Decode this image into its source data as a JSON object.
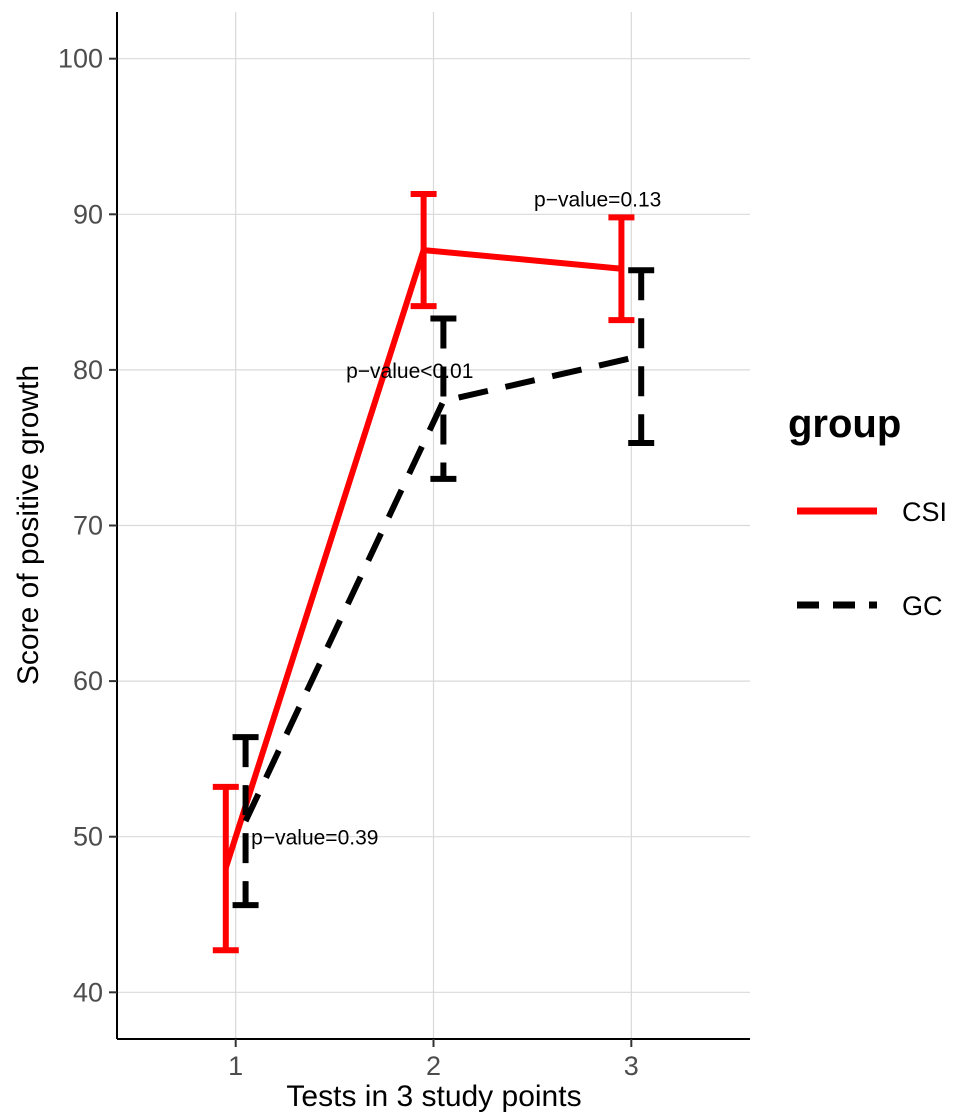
{
  "chart_data": {
    "type": "line",
    "xlabel": "Tests in 3 study points",
    "ylabel": "Score of positive growth",
    "x": [
      1,
      2,
      3
    ],
    "x_ticks": [
      "1",
      "2",
      "3"
    ],
    "xlim": [
      0.4,
      3.6
    ],
    "ylim": [
      37,
      103
    ],
    "y_ticks": [
      40,
      50,
      60,
      70,
      80,
      90,
      100
    ],
    "grid": true,
    "legend": {
      "title": "group",
      "position": "right"
    },
    "series": [
      {
        "name": "CSI",
        "color": "#ff0000",
        "linetype": "solid",
        "values": [
          48.0,
          87.7,
          86.5
        ],
        "lower": [
          42.7,
          84.1,
          83.2
        ],
        "upper": [
          53.2,
          91.3,
          89.8
        ]
      },
      {
        "name": "GC",
        "color": "#000000",
        "linetype": "dashed",
        "values": [
          51.0,
          78.0,
          80.9
        ],
        "lower": [
          45.6,
          73.0,
          75.3
        ],
        "upper": [
          56.4,
          83.3,
          86.4
        ]
      }
    ],
    "annotations": [
      {
        "text": "p−value=0.39",
        "x": 1.4,
        "y": 50.0
      },
      {
        "text": "p−value<0.01",
        "x": 1.88,
        "y": 80.0
      },
      {
        "text": "p−value=0.13",
        "x": 2.83,
        "y": 91.0
      }
    ]
  }
}
